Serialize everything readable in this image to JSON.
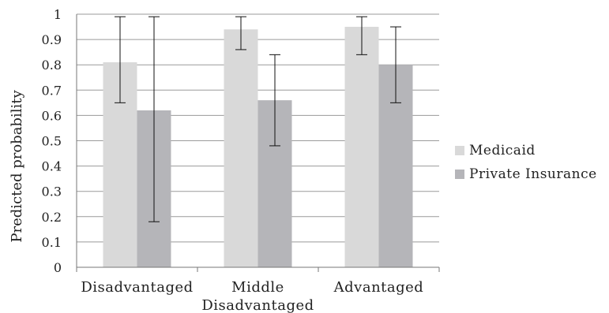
{
  "chart_data": {
    "type": "bar",
    "ylabel": "Predicted probability",
    "ylim": [
      0,
      1
    ],
    "yticks": [
      "0",
      "0.1",
      "0.2",
      "0.3",
      "0.4",
      "0.5",
      "0.6",
      "0.7",
      "0.8",
      "0.9",
      "1"
    ],
    "categories": [
      [
        "Disadvantaged"
      ],
      [
        "Middle",
        "Disadvantaged"
      ],
      [
        "Advantaged"
      ]
    ],
    "grid": true,
    "legend_position": "right",
    "series": [
      {
        "name": "Medicaid",
        "color": "#d9d9d9",
        "values": [
          0.81,
          0.94,
          0.95
        ],
        "err_low": [
          0.65,
          0.86,
          0.84
        ],
        "err_high": [
          0.99,
          0.99,
          0.99
        ]
      },
      {
        "name": "Private Insurance",
        "color": "#b5b5b9",
        "values": [
          0.62,
          0.66,
          0.8
        ],
        "err_low": [
          0.18,
          0.48,
          0.65
        ],
        "err_high": [
          0.99,
          0.84,
          0.95
        ]
      }
    ]
  }
}
